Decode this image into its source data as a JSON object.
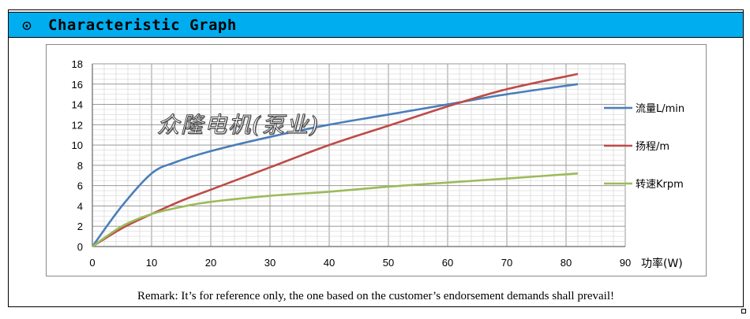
{
  "header": {
    "icon": "⊙",
    "icon_name": "circled-dot-icon",
    "title": "Characteristic Graph"
  },
  "watermark": "众隆电机(泵业)",
  "remark": "Remark: It’s for reference only, the one based on the customer’s endorsement demands shall prevail!",
  "chart_data": {
    "type": "line",
    "xlabel": "功率(W)",
    "ylabel": "",
    "xlim": [
      0,
      90
    ],
    "ylim": [
      0,
      18
    ],
    "x_ticks": [
      0,
      10,
      20,
      30,
      40,
      50,
      60,
      70,
      80,
      90
    ],
    "y_ticks": [
      0,
      2,
      4,
      6,
      8,
      10,
      12,
      14,
      16,
      18
    ],
    "grid": true,
    "legend_position": "right",
    "series": [
      {
        "name": "流量L/min",
        "color": "#4a7ebb",
        "x": [
          0,
          5,
          10,
          14,
          20,
          30,
          40,
          50,
          60,
          70,
          82
        ],
        "y": [
          0,
          4,
          7.2,
          8.3,
          9.4,
          10.8,
          12,
          13,
          14,
          15,
          16
        ]
      },
      {
        "name": "扬程/m",
        "color": "#be4b48",
        "x": [
          0,
          5,
          10,
          15,
          20,
          30,
          40,
          50,
          60,
          70,
          82
        ],
        "y": [
          0,
          1.8,
          3.2,
          4.5,
          5.6,
          7.8,
          10,
          11.9,
          13.8,
          15.5,
          17
        ]
      },
      {
        "name": "转速Krpm",
        "color": "#9bbb59",
        "x": [
          0,
          5,
          10,
          15,
          20,
          30,
          40,
          50,
          60,
          70,
          82
        ],
        "y": [
          0,
          2,
          3.2,
          3.9,
          4.4,
          5,
          5.4,
          5.9,
          6.3,
          6.7,
          7.2
        ]
      }
    ]
  }
}
